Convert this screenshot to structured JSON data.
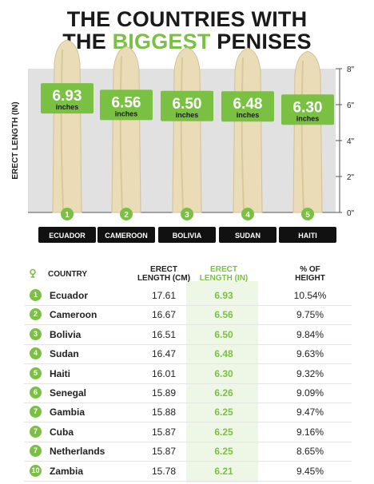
{
  "title": {
    "line1": "THE COUNTRIES WITH",
    "line2_prefix": "THE ",
    "line2_accent": "BIGGEST",
    "line2_suffix": " PENISES"
  },
  "colors": {
    "accent": "#7ac043",
    "dark": "#111111",
    "banana": "#efe2c0"
  },
  "chart_data": {
    "type": "bar",
    "ylabel": "ERECT LENGTH (IN)",
    "ylim": [
      0,
      8
    ],
    "yticks": [
      "0\"",
      "2\"",
      "4\"",
      "6\"",
      "8\""
    ],
    "unit_label": "inches",
    "categories": [
      "ECUADOR",
      "CAMEROON",
      "BOLIVIA",
      "SUDAN",
      "HAITI"
    ],
    "ranks": [
      "1",
      "2",
      "3",
      "4",
      "5"
    ],
    "values": [
      6.93,
      6.56,
      6.5,
      6.48,
      6.3
    ],
    "value_labels": [
      "6.93",
      "6.56",
      "6.50",
      "6.48",
      "6.30"
    ]
  },
  "table": {
    "headers": {
      "country": "COUNTRY",
      "cm_line1": "ERECT",
      "cm_line2": "LENGTH (CM)",
      "in_line1": "ERECT",
      "in_line2": "LENGTH (IN)",
      "pct_line1": "% OF",
      "pct_line2": "HEIGHT"
    },
    "rows": [
      {
        "rank": "1",
        "country": "Ecuador",
        "cm": "17.61",
        "inches": "6.93",
        "pct": "10.54%"
      },
      {
        "rank": "2",
        "country": "Cameroon",
        "cm": "16.67",
        "inches": "6.56",
        "pct": "9.75%"
      },
      {
        "rank": "3",
        "country": "Bolivia",
        "cm": "16.51",
        "inches": "6.50",
        "pct": "9.84%"
      },
      {
        "rank": "4",
        "country": "Sudan",
        "cm": "16.47",
        "inches": "6.48",
        "pct": "9.63%"
      },
      {
        "rank": "5",
        "country": "Haiti",
        "cm": "16.01",
        "inches": "6.30",
        "pct": "9.32%"
      },
      {
        "rank": "6",
        "country": "Senegal",
        "cm": "15.89",
        "inches": "6.26",
        "pct": "9.09%"
      },
      {
        "rank": "7",
        "country": "Gambia",
        "cm": "15.88",
        "inches": "6.25",
        "pct": "9.47%"
      },
      {
        "rank": "7",
        "country": "Cuba",
        "cm": "15.87",
        "inches": "6.25",
        "pct": "9.16%"
      },
      {
        "rank": "7",
        "country": "Netherlands",
        "cm": "15.87",
        "inches": "6.25",
        "pct": "8.65%"
      },
      {
        "rank": "10",
        "country": "Zambia",
        "cm": "15.78",
        "inches": "6.21",
        "pct": "9.45%"
      }
    ]
  }
}
